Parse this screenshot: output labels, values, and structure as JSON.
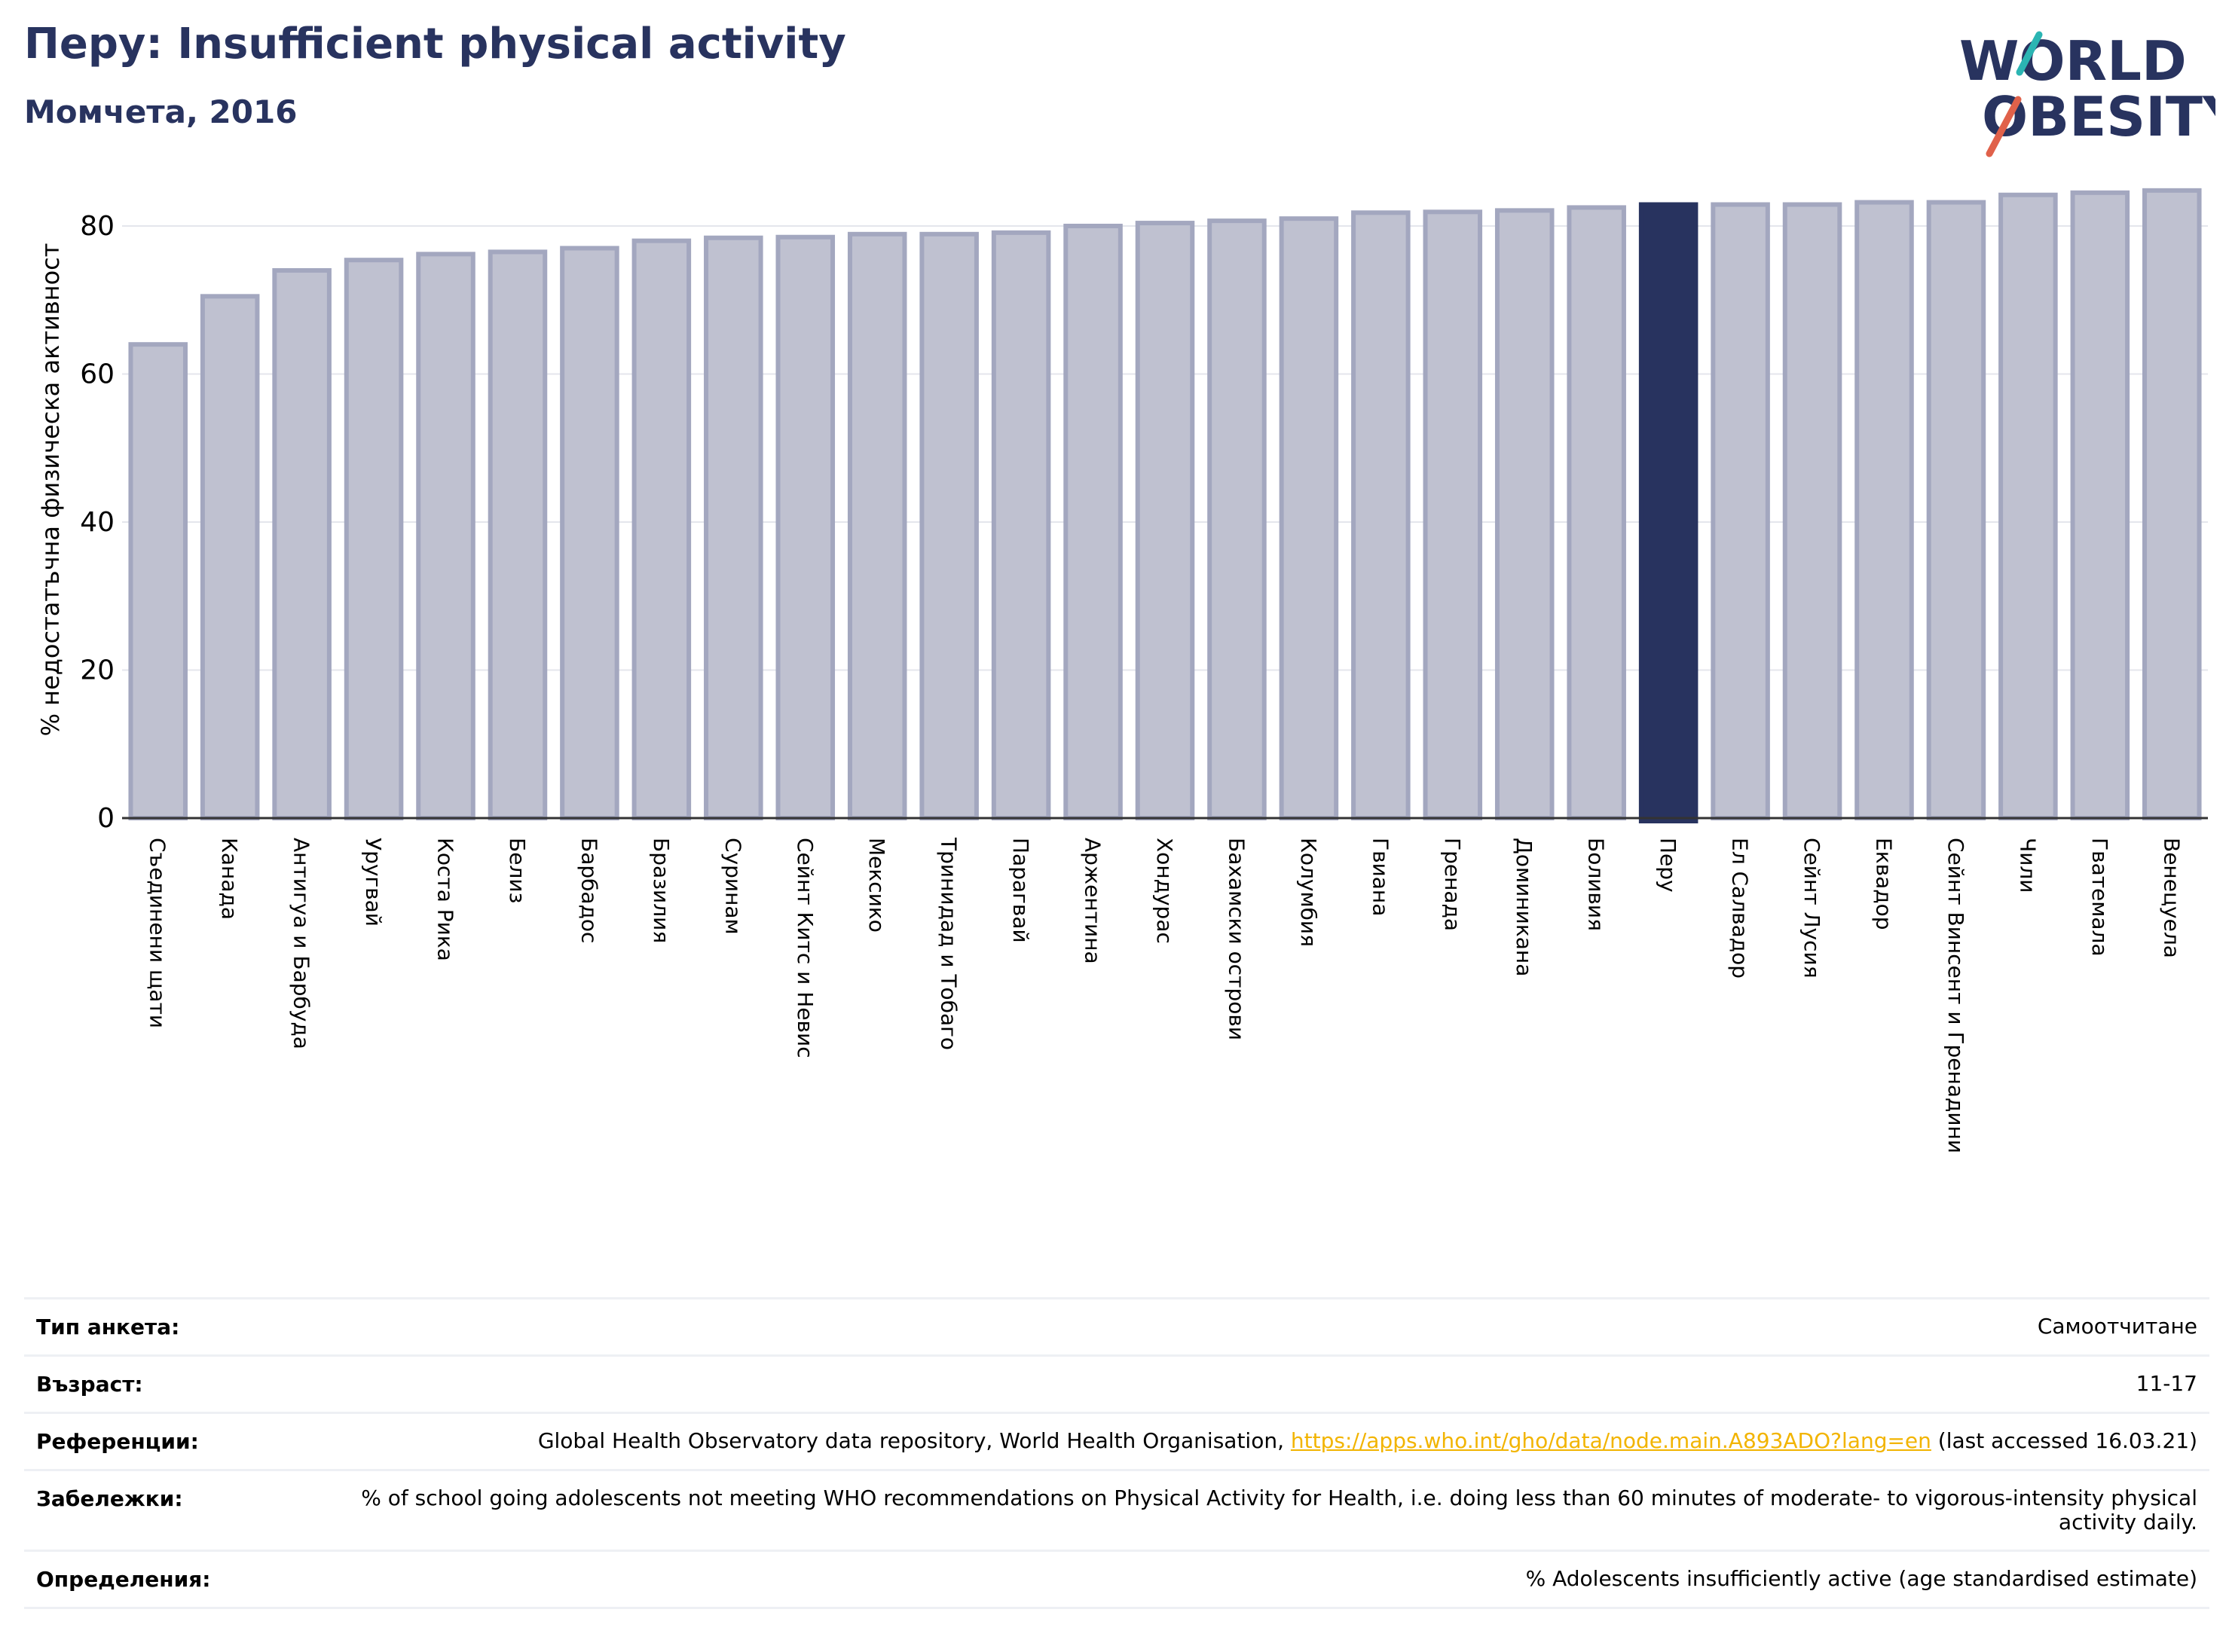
{
  "header": {
    "title": "Перу: Insufficient physical activity",
    "subtitle": "Момчета, 2016"
  },
  "logo": {
    "line1": "WORLD",
    "line2": "OBESITY"
  },
  "colors": {
    "bar": "#bfc1d0",
    "bar_edge": "#a3a7bf",
    "highlight": "#28335f",
    "title": "#28335f"
  },
  "chart_data": {
    "type": "bar",
    "ylabel": "% недостатъчна физическа активност",
    "ylim": [
      0,
      85
    ],
    "yticks": [
      0,
      20,
      40,
      60,
      80
    ],
    "grid": true,
    "highlight": "Перу",
    "categories": [
      "Съединени щати",
      "Канада",
      "Антигуа и Барбуда",
      "Уругвай",
      "Коста Рика",
      "Белиз",
      "Барбадос",
      "Бразилия",
      "Суринам",
      "Сейнт Китс и Невис",
      "Мексико",
      "Тринидад и Тобаго",
      "Парагвай",
      "Аржентина",
      "Хондурас",
      "Бахамски острови",
      "Колумбия",
      "Гвиана",
      "Гренада",
      "Доминикана",
      "Боливия",
      "Перу",
      "Ел Салвадор",
      "Сейнт Лусия",
      "Еквадор",
      "Сейнт Винсент и Гренадини",
      "Чили",
      "Гватемала",
      "Венецуела"
    ],
    "values": [
      64.0,
      70.5,
      74.0,
      75.4,
      76.2,
      76.5,
      77.0,
      78.0,
      78.4,
      78.5,
      78.9,
      78.9,
      79.1,
      80.0,
      80.4,
      80.7,
      81.0,
      81.8,
      81.9,
      82.1,
      82.5,
      82.9,
      82.9,
      82.9,
      83.2,
      83.2,
      84.2,
      84.5,
      84.8
    ]
  },
  "meta": [
    {
      "label": "Тип анкета:",
      "value": "Самоотчитане"
    },
    {
      "label": "Възраст:",
      "value": "11-17"
    },
    {
      "label": "Референции:",
      "value_pre": "Global Health Observatory data repository, World Health Organisation, ",
      "link": "https://apps.who.int/gho/data/node.main.A893ADO?lang=en",
      "value_post": " (last accessed 16.03.21)"
    },
    {
      "label": "Забележки:",
      "value": "% of school going adolescents not meeting WHO recommendations on Physical Activity for Health, i.e. doing less than 60 minutes of moderate- to vigorous-intensity physical activity daily."
    },
    {
      "label": "Определения:",
      "value": "% Adolescents insufficiently active (age standardised estimate)"
    }
  ]
}
